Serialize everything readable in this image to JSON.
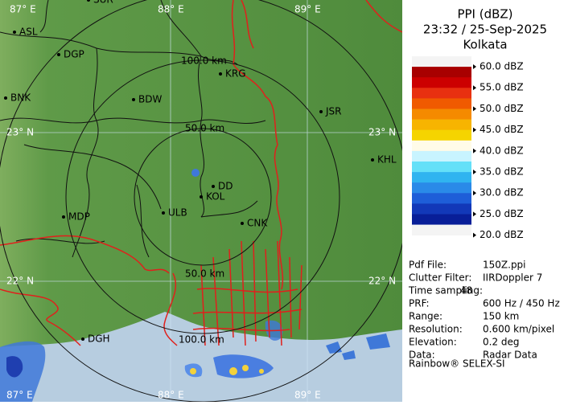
{
  "header": {
    "title": "PPI (dBZ)",
    "timestamp": "23:32 / 25-Sep-2025",
    "station": "Kolkata"
  },
  "legend": {
    "labels": [
      "60.0 dBZ",
      "55.0 dBZ",
      "50.0 dBZ",
      "45.0 dBZ",
      "40.0 dBZ",
      "35.0 dBZ",
      "30.0 dBZ",
      "25.0 dBZ",
      "20.0 dBZ"
    ]
  },
  "info": {
    "rows": [
      [
        "Pdf File:",
        "150Z.ppi"
      ],
      [
        "Clutter Filter:",
        "IIRDoppler 7"
      ],
      [
        "Time sampling:",
        "48"
      ],
      [
        "PRF:",
        "600 Hz / 450 Hz"
      ],
      [
        "Range:",
        "150 km"
      ],
      [
        "Resolution:",
        "0.600 km/pixel"
      ],
      [
        "Elevation:",
        "0.2 deg"
      ],
      [
        "Data:",
        "Radar Data"
      ]
    ],
    "footer": "Rainbow® SELEX-SI"
  },
  "map": {
    "grid_labels": [
      "87° E",
      "88° E",
      "89° E",
      "23° N",
      "23° N",
      "22° N",
      "22° N",
      "87° E",
      "88° E",
      "89° E"
    ],
    "range_labels": [
      "100.0 km",
      "50.0 km",
      "50.0 km",
      "100.0 km"
    ],
    "cities": [
      "SUR",
      "ASL",
      "DGP",
      "BNK",
      "BDW",
      "KRG",
      "JSR",
      "KHL",
      "MDP",
      "ULB",
      "KOL",
      "DD",
      "CNK",
      "DGH"
    ]
  }
}
